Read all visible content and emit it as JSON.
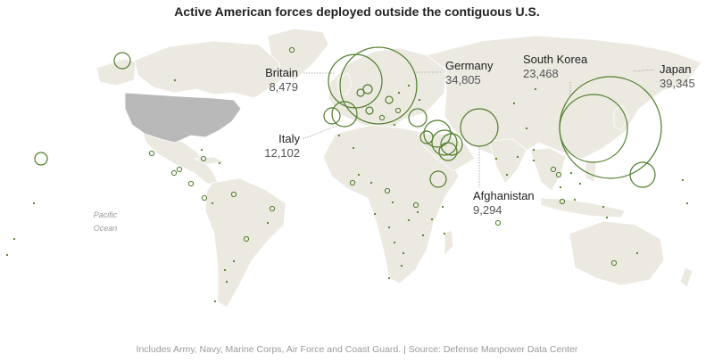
{
  "title": "Active American forces deployed outside the contiguous U.S.",
  "footer": "Includes Army, Navy, Marine Corps, Air Force and Coast Guard. | Source: Defense Manpower Data Center",
  "ocean_label": [
    "Pacific",
    "Ocean"
  ],
  "colors": {
    "land": "#ece9e1",
    "land_border": "#ffffff",
    "usa": "#b9b9b9",
    "circle": "#4f7d2a",
    "leader": "#999999"
  },
  "callouts": [
    {
      "id": "britain",
      "name": "Britain",
      "value": "8,479"
    },
    {
      "id": "germany",
      "name": "Germany",
      "value": "34,805"
    },
    {
      "id": "south-korea",
      "name": "South Korea",
      "value": "23,468"
    },
    {
      "id": "japan",
      "name": "Japan",
      "value": "39,345"
    },
    {
      "id": "italy",
      "name": "Italy",
      "value": "12,102"
    },
    {
      "id": "afghanistan",
      "name": "Afghanistan",
      "value": "9,294"
    }
  ]
}
